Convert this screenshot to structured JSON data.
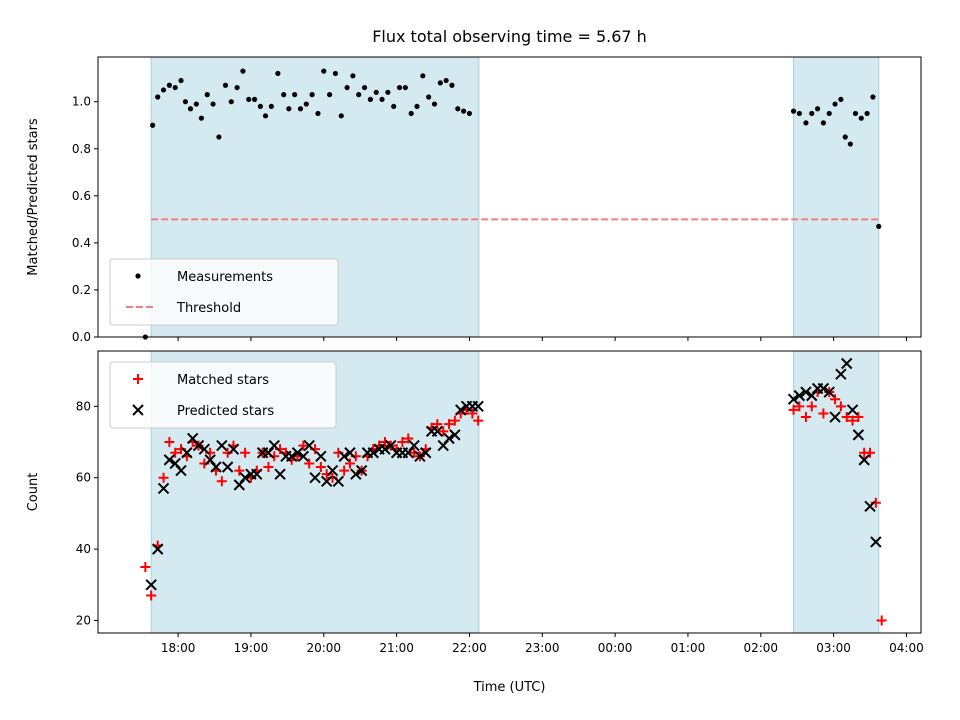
{
  "chart_data": {
    "type": "scatter",
    "title": "Flux total observing time = 5.67 h",
    "xlabel": "Time (UTC)",
    "x_ticks": [
      "18:00",
      "19:00",
      "20:00",
      "21:00",
      "22:00",
      "23:00",
      "00:00",
      "01:00",
      "02:00",
      "03:00",
      "04:00"
    ],
    "x_range_hours": [
      16.9,
      28.2
    ],
    "shaded_intervals": [
      [
        17.63,
        22.13
      ],
      [
        26.45,
        27.62
      ]
    ],
    "shade_color": "#d4eaf0",
    "panels": [
      {
        "ylabel": "Matched/Predicted stars",
        "ylim": [
          0.0,
          1.19
        ],
        "y_ticks": [
          0.0,
          0.2,
          0.4,
          0.6,
          0.8,
          1.0
        ],
        "threshold": {
          "name": "Threshold",
          "value": 0.5,
          "x_range": [
            17.63,
            27.62
          ],
          "color": "#f08080"
        },
        "legend": {
          "placement": "lower-left",
          "entries": [
            "Measurements",
            "Threshold"
          ]
        },
        "series": [
          {
            "name": "Measurements",
            "marker": "dot",
            "color": "#000000",
            "points": [
              [
                17.55,
                0.0
              ],
              [
                17.65,
                0.9
              ],
              [
                17.72,
                1.02
              ],
              [
                17.8,
                1.05
              ],
              [
                17.88,
                1.07
              ],
              [
                17.96,
                1.06
              ],
              [
                18.04,
                1.09
              ],
              [
                18.1,
                1.0
              ],
              [
                18.17,
                0.97
              ],
              [
                18.25,
                0.99
              ],
              [
                18.32,
                0.93
              ],
              [
                18.4,
                1.03
              ],
              [
                18.48,
                0.99
              ],
              [
                18.56,
                0.85
              ],
              [
                18.65,
                1.07
              ],
              [
                18.73,
                1.0
              ],
              [
                18.81,
                1.06
              ],
              [
                18.89,
                1.13
              ],
              [
                18.97,
                1.01
              ],
              [
                19.05,
                1.01
              ],
              [
                19.13,
                0.98
              ],
              [
                19.2,
                0.94
              ],
              [
                19.28,
                0.98
              ],
              [
                19.37,
                1.12
              ],
              [
                19.45,
                1.03
              ],
              [
                19.52,
                0.97
              ],
              [
                19.6,
                1.03
              ],
              [
                19.68,
                0.97
              ],
              [
                19.76,
                0.99
              ],
              [
                19.84,
                1.03
              ],
              [
                19.92,
                0.95
              ],
              [
                20.0,
                1.13
              ],
              [
                20.08,
                1.03
              ],
              [
                20.16,
                1.12
              ],
              [
                20.24,
                0.94
              ],
              [
                20.32,
                1.06
              ],
              [
                20.4,
                1.11
              ],
              [
                20.48,
                1.03
              ],
              [
                20.56,
                1.06
              ],
              [
                20.64,
                1.01
              ],
              [
                20.72,
                1.04
              ],
              [
                20.8,
                1.01
              ],
              [
                20.88,
                1.04
              ],
              [
                20.96,
                0.98
              ],
              [
                21.04,
                1.06
              ],
              [
                21.12,
                1.06
              ],
              [
                21.2,
                0.95
              ],
              [
                21.28,
                0.98
              ],
              [
                21.36,
                1.11
              ],
              [
                21.44,
                1.02
              ],
              [
                21.52,
                0.99
              ],
              [
                21.6,
                1.08
              ],
              [
                21.68,
                1.09
              ],
              [
                21.76,
                1.07
              ],
              [
                21.84,
                0.97
              ],
              [
                21.92,
                0.96
              ],
              [
                22.0,
                0.95
              ],
              [
                26.45,
                0.96
              ],
              [
                26.53,
                0.95
              ],
              [
                26.62,
                0.91
              ],
              [
                26.7,
                0.95
              ],
              [
                26.78,
                0.97
              ],
              [
                26.86,
                0.91
              ],
              [
                26.94,
                0.95
              ],
              [
                27.02,
                0.99
              ],
              [
                27.1,
                1.01
              ],
              [
                27.16,
                0.85
              ],
              [
                27.23,
                0.82
              ],
              [
                27.3,
                0.95
              ],
              [
                27.38,
                0.93
              ],
              [
                27.46,
                0.95
              ],
              [
                27.54,
                1.02
              ],
              [
                27.62,
                0.47
              ]
            ]
          }
        ]
      },
      {
        "ylabel": "Count",
        "ylim": [
          16.5,
          95.5
        ],
        "y_ticks": [
          20,
          40,
          60,
          80
        ],
        "legend": {
          "placement": "top-left",
          "entries": [
            "Matched stars",
            "Predicted stars"
          ]
        },
        "series": [
          {
            "name": "Matched stars",
            "marker": "plus",
            "color": "#ff0000",
            "points": [
              [
                17.55,
                35
              ],
              [
                17.63,
                27
              ],
              [
                17.72,
                41
              ],
              [
                17.8,
                60
              ],
              [
                17.88,
                70
              ],
              [
                17.96,
                67
              ],
              [
                18.04,
                68
              ],
              [
                18.12,
                66
              ],
              [
                18.2,
                70
              ],
              [
                18.28,
                69
              ],
              [
                18.36,
                64
              ],
              [
                18.44,
                67
              ],
              [
                18.52,
                62
              ],
              [
                18.6,
                59
              ],
              [
                18.68,
                67
              ],
              [
                18.76,
                69
              ],
              [
                18.84,
                62
              ],
              [
                18.92,
                67
              ],
              [
                19.0,
                60
              ],
              [
                19.08,
                62
              ],
              [
                19.16,
                67
              ],
              [
                19.24,
                63
              ],
              [
                19.32,
                66
              ],
              [
                19.4,
                68
              ],
              [
                19.48,
                67
              ],
              [
                19.56,
                65
              ],
              [
                19.64,
                66
              ],
              [
                19.72,
                69
              ],
              [
                19.8,
                64
              ],
              [
                19.88,
                68
              ],
              [
                19.96,
                63
              ],
              [
                20.04,
                61
              ],
              [
                20.12,
                60
              ],
              [
                20.2,
                67
              ],
              [
                20.28,
                62
              ],
              [
                20.36,
                64
              ],
              [
                20.44,
                66
              ],
              [
                20.52,
                62
              ],
              [
                20.6,
                66
              ],
              [
                20.68,
                68
              ],
              [
                20.76,
                69
              ],
              [
                20.84,
                70
              ],
              [
                20.92,
                69
              ],
              [
                21.0,
                68
              ],
              [
                21.08,
                70
              ],
              [
                21.16,
                71
              ],
              [
                21.24,
                67
              ],
              [
                21.32,
                66
              ],
              [
                21.4,
                68
              ],
              [
                21.48,
                74
              ],
              [
                21.56,
                75
              ],
              [
                21.64,
                73
              ],
              [
                21.72,
                75
              ],
              [
                21.8,
                76
              ],
              [
                21.88,
                78
              ],
              [
                21.96,
                79
              ],
              [
                22.04,
                78
              ],
              [
                22.12,
                76
              ],
              [
                26.45,
                79
              ],
              [
                26.53,
                80
              ],
              [
                26.62,
                77
              ],
              [
                26.7,
                80
              ],
              [
                26.78,
                84
              ],
              [
                26.86,
                78
              ],
              [
                26.94,
                84
              ],
              [
                27.02,
                82
              ],
              [
                27.1,
                80
              ],
              [
                27.18,
                77
              ],
              [
                27.26,
                76
              ],
              [
                27.34,
                77
              ],
              [
                27.42,
                67
              ],
              [
                27.5,
                67
              ],
              [
                27.58,
                53
              ],
              [
                27.66,
                20
              ]
            ]
          },
          {
            "name": "Predicted stars",
            "marker": "x",
            "color": "#000000",
            "points": [
              [
                17.63,
                30
              ],
              [
                17.72,
                40
              ],
              [
                17.8,
                57
              ],
              [
                17.88,
                65
              ],
              [
                17.96,
                64
              ],
              [
                18.04,
                62
              ],
              [
                18.12,
                67
              ],
              [
                18.2,
                71
              ],
              [
                18.28,
                69
              ],
              [
                18.36,
                68
              ],
              [
                18.44,
                65
              ],
              [
                18.52,
                63
              ],
              [
                18.6,
                69
              ],
              [
                18.68,
                63
              ],
              [
                18.76,
                68
              ],
              [
                18.84,
                58
              ],
              [
                18.92,
                60
              ],
              [
                19.0,
                61
              ],
              [
                19.08,
                61
              ],
              [
                19.16,
                67
              ],
              [
                19.24,
                67
              ],
              [
                19.32,
                69
              ],
              [
                19.4,
                61
              ],
              [
                19.48,
                66
              ],
              [
                19.56,
                66
              ],
              [
                19.64,
                67
              ],
              [
                19.72,
                66
              ],
              [
                19.8,
                69
              ],
              [
                19.88,
                60
              ],
              [
                19.96,
                66
              ],
              [
                20.04,
                59
              ],
              [
                20.12,
                62
              ],
              [
                20.2,
                59
              ],
              [
                20.28,
                66
              ],
              [
                20.36,
                67
              ],
              [
                20.44,
                61
              ],
              [
                20.52,
                62
              ],
              [
                20.6,
                67
              ],
              [
                20.68,
                67
              ],
              [
                20.76,
                68
              ],
              [
                20.84,
                68
              ],
              [
                20.92,
                69
              ],
              [
                21.0,
                67
              ],
              [
                21.08,
                67
              ],
              [
                21.16,
                67
              ],
              [
                21.24,
                69
              ],
              [
                21.32,
                66
              ],
              [
                21.4,
                67
              ],
              [
                21.48,
                73
              ],
              [
                21.56,
                73
              ],
              [
                21.64,
                69
              ],
              [
                21.72,
                71
              ],
              [
                21.8,
                72
              ],
              [
                21.88,
                79
              ],
              [
                21.96,
                80
              ],
              [
                22.04,
                80
              ],
              [
                22.12,
                80
              ],
              [
                26.45,
                82
              ],
              [
                26.53,
                83
              ],
              [
                26.62,
                84
              ],
              [
                26.7,
                83
              ],
              [
                26.78,
                85
              ],
              [
                26.86,
                85
              ],
              [
                26.94,
                84
              ],
              [
                27.02,
                77
              ],
              [
                27.1,
                89
              ],
              [
                27.18,
                92
              ],
              [
                27.26,
                79
              ],
              [
                27.34,
                72
              ],
              [
                27.42,
                65
              ],
              [
                27.5,
                52
              ],
              [
                27.58,
                42
              ]
            ]
          }
        ]
      }
    ]
  }
}
